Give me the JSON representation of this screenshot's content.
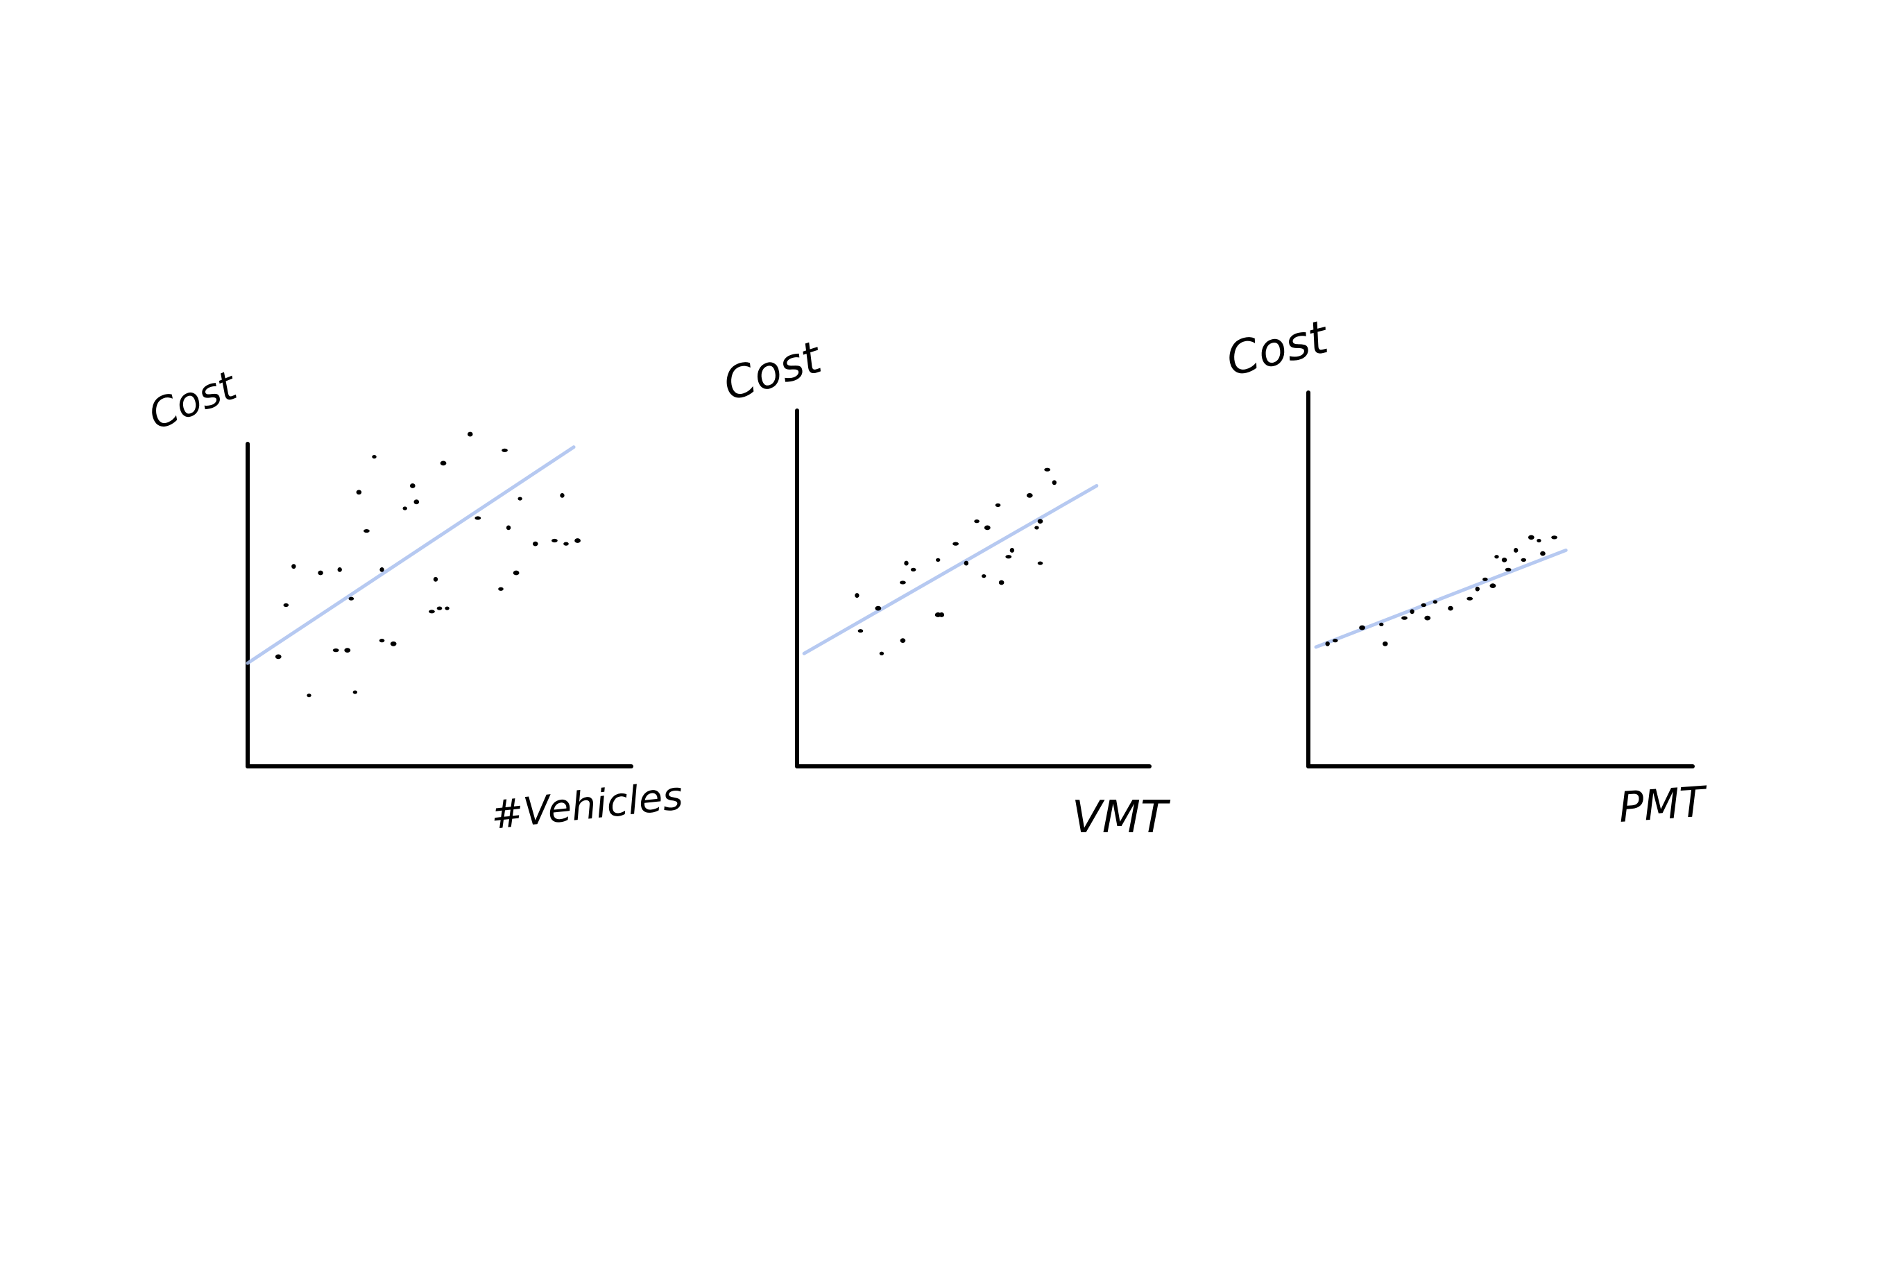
{
  "colors": {
    "axis": "#000000",
    "points": "#000000",
    "trend": "#a9c0ee"
  },
  "chart_data": [
    {
      "type": "scatter",
      "title": "",
      "xlabel": "#Vehicles",
      "ylabel": "Cost",
      "xlim": [
        0,
        100
      ],
      "ylim": [
        0,
        100
      ],
      "grid": false,
      "points": [
        [
          12,
          62
        ],
        [
          10,
          50
        ],
        [
          8,
          34
        ],
        [
          16,
          22
        ],
        [
          19,
          60
        ],
        [
          23,
          36
        ],
        [
          24,
          61
        ],
        [
          27,
          52
        ],
        [
          26,
          36
        ],
        [
          28,
          23
        ],
        [
          29,
          85
        ],
        [
          31,
          73
        ],
        [
          35,
          61
        ],
        [
          35,
          39
        ],
        [
          38,
          38
        ],
        [
          41,
          80
        ],
        [
          44,
          82
        ],
        [
          48,
          48
        ],
        [
          49,
          58
        ],
        [
          50,
          49
        ],
        [
          51,
          94
        ],
        [
          52,
          49
        ],
        [
          58,
          103
        ],
        [
          67,
          98
        ],
        [
          68,
          74
        ],
        [
          66,
          55
        ],
        [
          70,
          60
        ],
        [
          71,
          83
        ],
        [
          75,
          69
        ],
        [
          80,
          70
        ],
        [
          82,
          84
        ],
        [
          83,
          69
        ],
        [
          86,
          70
        ],
        [
          33,
          96
        ],
        [
          43,
          87
        ],
        [
          60,
          77
        ]
      ],
      "trend": {
        "x": [
          0,
          85
        ],
        "y": [
          32,
          99
        ]
      }
    },
    {
      "type": "scatter",
      "title": "",
      "xlabel": "VMT",
      "ylabel": "Cost",
      "xlim": [
        0,
        100
      ],
      "ylim": [
        0,
        100
      ],
      "grid": false,
      "points": [
        [
          17,
          53
        ],
        [
          18,
          42
        ],
        [
          23,
          49
        ],
        [
          24,
          35
        ],
        [
          30,
          39
        ],
        [
          30,
          57
        ],
        [
          31,
          63
        ],
        [
          33,
          61
        ],
        [
          40,
          47
        ],
        [
          40,
          64
        ],
        [
          41,
          47
        ],
        [
          45,
          69
        ],
        [
          48,
          63
        ],
        [
          51,
          76
        ],
        [
          54,
          74
        ],
        [
          53,
          59
        ],
        [
          58,
          57
        ],
        [
          60,
          65
        ],
        [
          61,
          67
        ],
        [
          57,
          81
        ],
        [
          66,
          84
        ],
        [
          68,
          74
        ],
        [
          69,
          76
        ],
        [
          71,
          92
        ],
        [
          73,
          88
        ],
        [
          69,
          63
        ]
      ],
      "trend": {
        "x": [
          2,
          85
        ],
        "y": [
          35,
          87
        ]
      }
    },
    {
      "type": "scatter",
      "title": "",
      "xlabel": "PMT",
      "ylabel": "Cost",
      "xlim": [
        0,
        100
      ],
      "ylim": [
        0,
        100
      ],
      "grid": false,
      "points": [
        [
          5,
          38
        ],
        [
          7,
          39
        ],
        [
          14,
          43
        ],
        [
          19,
          44
        ],
        [
          20,
          38
        ],
        [
          25,
          46
        ],
        [
          27,
          48
        ],
        [
          30,
          50
        ],
        [
          31,
          46
        ],
        [
          33,
          51
        ],
        [
          37,
          49
        ],
        [
          42,
          52
        ],
        [
          44,
          55
        ],
        [
          46,
          58
        ],
        [
          48,
          56
        ],
        [
          49,
          65
        ],
        [
          51,
          64
        ],
        [
          52,
          61
        ],
        [
          54,
          67
        ],
        [
          56,
          64
        ],
        [
          58,
          71
        ],
        [
          60,
          70
        ],
        [
          61,
          66
        ],
        [
          64,
          71
        ]
      ],
      "trend": {
        "x": [
          2,
          67
        ],
        "y": [
          37,
          67
        ]
      }
    }
  ]
}
